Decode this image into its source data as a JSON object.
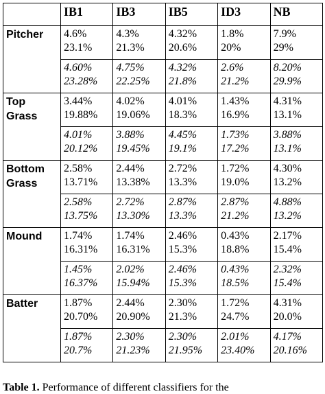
{
  "table": {
    "columns": [
      "IB1",
      "IB3",
      "IB5",
      "ID3",
      "NB"
    ],
    "groups": [
      {
        "label": "Pitcher",
        "rows": [
          {
            "style": "normal",
            "cells": [
              [
                "4.6%",
                "23.1%"
              ],
              [
                "4.3%",
                "21.3%"
              ],
              [
                "4.32%",
                "20.6%"
              ],
              [
                "1.8%",
                "20%"
              ],
              [
                "7.9%",
                "29%"
              ]
            ]
          },
          {
            "style": "italic",
            "cells": [
              [
                "4.60%",
                "23.28%"
              ],
              [
                "4.75%",
                "22.25%"
              ],
              [
                "4.32%",
                "21.8%"
              ],
              [
                "2.6%",
                "21.2%"
              ],
              [
                "8.20%",
                "29.9%"
              ]
            ]
          }
        ]
      },
      {
        "label": "Top Grass",
        "rows": [
          {
            "style": "normal",
            "cells": [
              [
                "3.44%",
                "19.88%"
              ],
              [
                "4.02%",
                "19.06%"
              ],
              [
                "4.01%",
                "18.3%"
              ],
              [
                "1.43%",
                "16.9%"
              ],
              [
                "4.31%",
                "13.1%"
              ]
            ]
          },
          {
            "style": "italic",
            "cells": [
              [
                "4.01%",
                "20.12%"
              ],
              [
                "3.88%",
                "19.45%"
              ],
              [
                "4.45%",
                "19.1%"
              ],
              [
                "1.73%",
                "17.2%"
              ],
              [
                "3.88%",
                "13.1%"
              ]
            ]
          }
        ]
      },
      {
        "label": "Bottom Grass",
        "rows": [
          {
            "style": "normal",
            "cells": [
              [
                "2.58%",
                "13.71%"
              ],
              [
                "2.44%",
                "13.38%"
              ],
              [
                "2.72%",
                "13.3%"
              ],
              [
                "1.72%",
                "19.0%"
              ],
              [
                "4.30%",
                "13.2%"
              ]
            ]
          },
          {
            "style": "italic",
            "cells": [
              [
                "2.58%",
                "13.75%"
              ],
              [
                "2.72%",
                "13.30%"
              ],
              [
                "2.87%",
                "13.3%"
              ],
              [
                "2.87%",
                "21.2%"
              ],
              [
                "4.88%",
                "13.2%"
              ]
            ]
          }
        ]
      },
      {
        "label": "Mound",
        "rows": [
          {
            "style": "normal",
            "cells": [
              [
                "1.74%",
                "16.31%"
              ],
              [
                "1.74%",
                "16.31%"
              ],
              [
                "2.46%",
                "15.3%"
              ],
              [
                "0.43%",
                "18.8%"
              ],
              [
                "2.17%",
                "15.4%"
              ]
            ]
          },
          {
            "style": "italic",
            "cells": [
              [
                "1.45%",
                "16.37%"
              ],
              [
                "2.02%",
                "15.94%"
              ],
              [
                "2.46%",
                "15.3%"
              ],
              [
                "0.43%",
                "18.5%"
              ],
              [
                "2.32%",
                "15.4%"
              ]
            ]
          }
        ]
      },
      {
        "label": "Batter",
        "rows": [
          {
            "style": "normal",
            "cells": [
              [
                "1.87%",
                "20.70%"
              ],
              [
                "2.44%",
                "20.90%"
              ],
              [
                "2.30%",
                "21.3%"
              ],
              [
                "1.72%",
                "24.7%"
              ],
              [
                "4.31%",
                "20.0%"
              ]
            ]
          },
          {
            "style": "italic",
            "cells": [
              [
                "1.87%",
                "20.7%"
              ],
              [
                "2.30%",
                "21.23%"
              ],
              [
                "2.30%",
                "21.95%"
              ],
              [
                "2.01%",
                "23.40%"
              ],
              [
                "4.17%",
                "20.16%"
              ]
            ]
          }
        ]
      }
    ]
  },
  "caption": {
    "label": "Table 1.",
    "text": "Performance of different classifiers for the"
  }
}
